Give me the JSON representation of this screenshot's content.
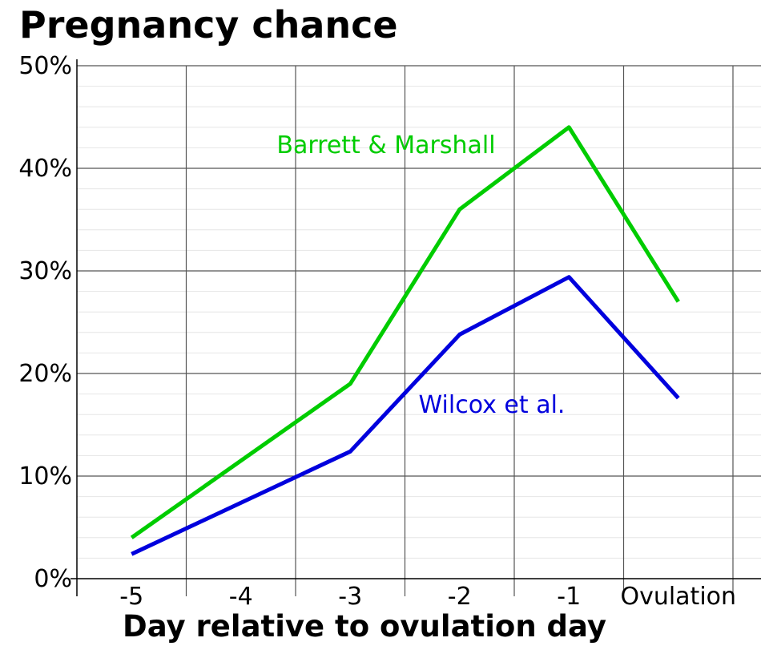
{
  "chart_data": {
    "type": "line",
    "title": "Pregnancy chance",
    "xlabel": "Day relative to ovulation day",
    "ylabel": "",
    "categories": [
      "-5",
      "-4",
      "-3",
      "-2",
      "-1",
      "Ovulation"
    ],
    "yticks": [
      "0%",
      "10%",
      "20%",
      "30%",
      "40%",
      "50%"
    ],
    "ylim": [
      0,
      50
    ],
    "grid": true,
    "legend": "none",
    "series": [
      {
        "name": "Barrett & Marshall",
        "color": "#00cc00",
        "values": [
          4,
          null,
          19,
          36,
          44,
          27
        ]
      },
      {
        "name": "Wilcox et al.",
        "color": "#0000dd",
        "values": [
          2.4,
          null,
          12.4,
          23.8,
          29.4,
          17.6
        ]
      }
    ]
  }
}
